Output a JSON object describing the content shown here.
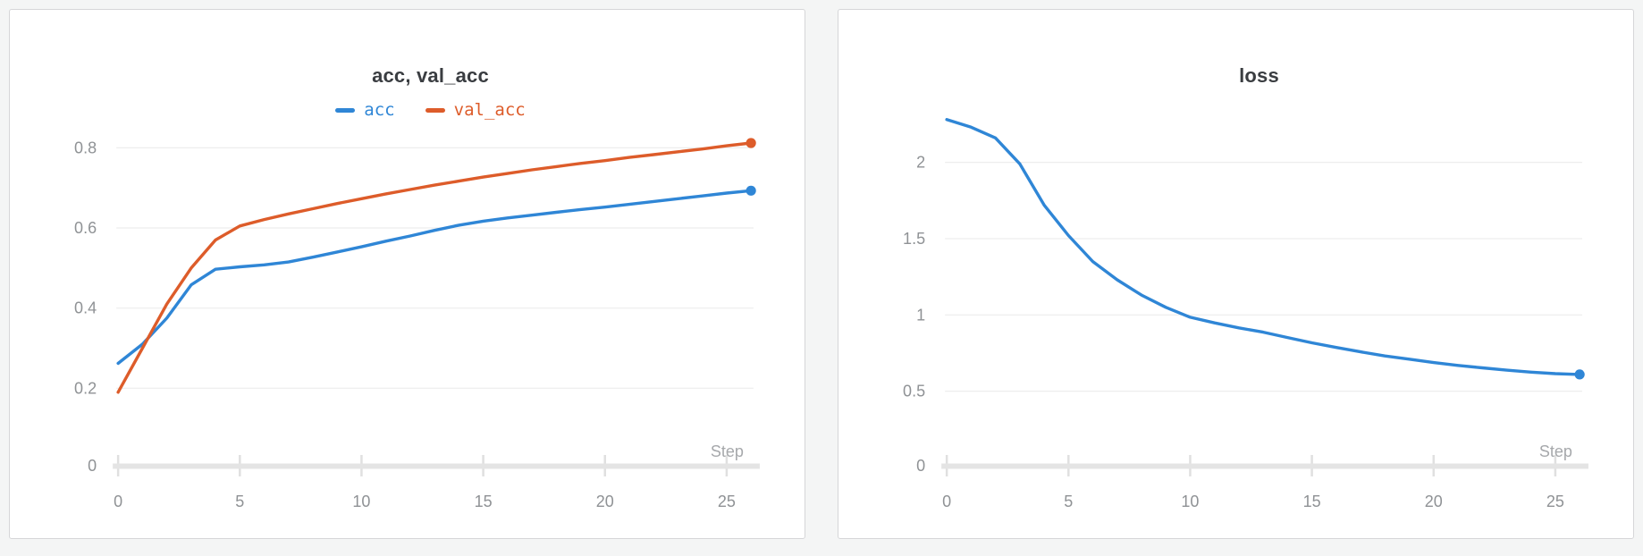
{
  "page": {
    "background": "#f4f5f5",
    "theme": {
      "card_bg": "#ffffff",
      "card_border": "#d5d6d8",
      "gridline": "#ededed",
      "axis_bar": "#e4e4e4",
      "axis_tick": "#e0e0e0",
      "tick_text": "#8f9295",
      "step_text": "#a6a8ab",
      "title_text": "#3a3d41"
    }
  },
  "chart_data": [
    {
      "type": "line",
      "title": "acc, val_acc",
      "xlabel": "Step",
      "legend_position": "top-center",
      "grid": "horizontal",
      "xlim": [
        0,
        26
      ],
      "ylim": [
        0,
        0.88
      ],
      "x": [
        0,
        1,
        2,
        3,
        4,
        5,
        6,
        7,
        8,
        9,
        10,
        11,
        12,
        13,
        14,
        15,
        16,
        17,
        18,
        19,
        20,
        21,
        22,
        23,
        24,
        25,
        26
      ],
      "x_ticks": [
        {
          "label": "0",
          "value": 0
        },
        {
          "label": "5",
          "value": 5
        },
        {
          "label": "10",
          "value": 10
        },
        {
          "label": "15",
          "value": 15
        },
        {
          "label": "20",
          "value": 20
        },
        {
          "label": "25",
          "value": 25
        }
      ],
      "y_ticks": [
        {
          "label": "0.8",
          "value": 0.8
        },
        {
          "label": "0.6",
          "value": 0.6
        },
        {
          "label": "0.4",
          "value": 0.4
        },
        {
          "label": "0.2",
          "value": 0.2
        },
        {
          "label": "0",
          "value": 0
        }
      ],
      "series": [
        {
          "name": "acc",
          "color": "#2f86d6",
          "end_dot": true,
          "values": [
            0.262,
            0.31,
            0.375,
            0.458,
            0.497,
            0.503,
            0.508,
            0.515,
            0.527,
            0.54,
            0.553,
            0.567,
            0.58,
            0.594,
            0.607,
            0.617,
            0.625,
            0.632,
            0.639,
            0.646,
            0.652,
            0.659,
            0.666,
            0.673,
            0.68,
            0.687,
            0.693
          ]
        },
        {
          "name": "val_acc",
          "color": "#dd5c2a",
          "end_dot": true,
          "values": [
            0.19,
            0.3,
            0.41,
            0.5,
            0.57,
            0.605,
            0.621,
            0.635,
            0.648,
            0.661,
            0.673,
            0.685,
            0.696,
            0.707,
            0.717,
            0.727,
            0.736,
            0.745,
            0.753,
            0.761,
            0.768,
            0.776,
            0.783,
            0.79,
            0.797,
            0.805,
            0.812
          ]
        }
      ]
    },
    {
      "type": "line",
      "title": "loss",
      "xlabel": "Step",
      "legend_position": "none",
      "grid": "horizontal",
      "xlim": [
        0,
        26
      ],
      "ylim": [
        0,
        2.36
      ],
      "x": [
        0,
        1,
        2,
        3,
        4,
        5,
        6,
        7,
        8,
        9,
        10,
        11,
        12,
        13,
        14,
        15,
        16,
        17,
        18,
        19,
        20,
        21,
        22,
        23,
        24,
        25,
        26
      ],
      "x_ticks": [
        {
          "label": "0",
          "value": 0
        },
        {
          "label": "5",
          "value": 5
        },
        {
          "label": "10",
          "value": 10
        },
        {
          "label": "15",
          "value": 15
        },
        {
          "label": "20",
          "value": 20
        },
        {
          "label": "25",
          "value": 25
        }
      ],
      "y_ticks": [
        {
          "label": "2",
          "value": 2
        },
        {
          "label": "1.5",
          "value": 1.5
        },
        {
          "label": "1",
          "value": 1
        },
        {
          "label": "0.5",
          "value": 0.5
        },
        {
          "label": "0",
          "value": 0
        }
      ],
      "series": [
        {
          "name": "loss",
          "color": "#2f86d6",
          "end_dot": true,
          "values": [
            2.28,
            2.23,
            2.16,
            1.99,
            1.72,
            1.52,
            1.35,
            1.23,
            1.13,
            1.05,
            0.985,
            0.948,
            0.915,
            0.887,
            0.852,
            0.817,
            0.787,
            0.758,
            0.731,
            0.71,
            0.688,
            0.669,
            0.653,
            0.638,
            0.625,
            0.615,
            0.61
          ]
        }
      ]
    }
  ]
}
